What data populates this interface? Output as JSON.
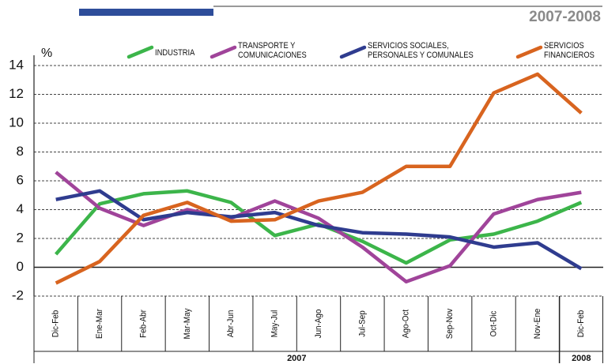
{
  "chart_data": {
    "type": "line",
    "subtitle": "2007-2008",
    "y_label": "%",
    "categories": [
      "Dic-Feb",
      "Ene-Mar",
      "Feb-Abr",
      "Mar-May",
      "Abr-Jun",
      "May-Jul",
      "Jun-Ago",
      "Jul-Sep",
      "Ago-Oct",
      "Sep-Nov",
      "Oct-Dic",
      "Nov-Ene",
      "Dic-Feb"
    ],
    "year_groups": [
      {
        "label": "2007",
        "start": 0,
        "end": 11
      },
      {
        "label": "2008",
        "start": 12,
        "end": 12
      }
    ],
    "series": [
      {
        "name": "INDUSTRIA",
        "color": "#3cb54a",
        "values": [
          0.9,
          4.4,
          5.1,
          5.3,
          4.5,
          2.2,
          3.0,
          1.8,
          0.3,
          1.9,
          2.3,
          3.2,
          4.5
        ]
      },
      {
        "name": "TRANSPORTE Y\nCOMUNICACIONES",
        "color": "#a0449a",
        "values": [
          6.6,
          4.1,
          2.9,
          4.0,
          3.4,
          4.6,
          3.4,
          1.4,
          -1.0,
          0.1,
          3.7,
          4.7,
          5.2
        ]
      },
      {
        "name": "SERVICIOS SOCIALES,\nPERSONALES Y COMUNALES",
        "color": "#2f3c8f",
        "values": [
          4.7,
          5.3,
          3.3,
          3.8,
          3.5,
          3.8,
          2.9,
          2.4,
          2.3,
          2.1,
          1.4,
          1.7,
          -0.1
        ]
      },
      {
        "name": "SERVICIOS\nFINANCIEROS",
        "color": "#d8641f",
        "values": [
          -1.1,
          0.4,
          3.6,
          4.5,
          3.2,
          3.3,
          4.6,
          5.2,
          7.0,
          7.0,
          12.1,
          13.4,
          10.7
        ]
      }
    ],
    "ylim": [
      -2,
      14
    ],
    "yticks": [
      -2,
      0,
      2,
      4,
      6,
      8,
      10,
      12,
      14
    ],
    "grid": true
  }
}
